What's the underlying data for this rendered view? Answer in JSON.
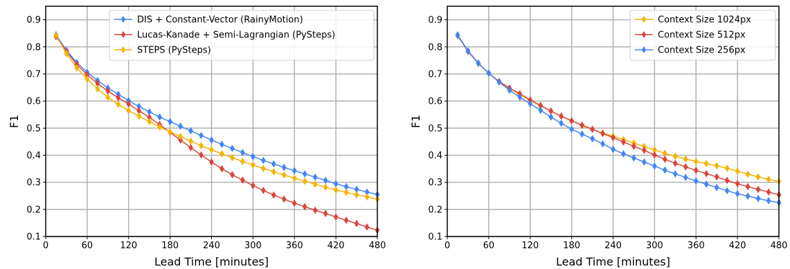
{
  "chart_data": [
    {
      "type": "line",
      "xlabel": "Lead Time [minutes]",
      "ylabel": "F1",
      "xlim": [
        0,
        480
      ],
      "ylim": [
        0.1,
        0.95
      ],
      "xticks": [
        0,
        60,
        120,
        180,
        240,
        300,
        360,
        420,
        480
      ],
      "yticks": [
        0.1,
        0.2,
        0.3,
        0.4,
        0.5,
        0.6,
        0.7,
        0.8,
        0.9
      ],
      "grid": true,
      "legend_position": "top-right",
      "x": [
        15,
        30,
        45,
        60,
        75,
        90,
        105,
        120,
        135,
        150,
        165,
        180,
        195,
        210,
        225,
        240,
        255,
        270,
        285,
        300,
        315,
        330,
        345,
        360,
        375,
        390,
        405,
        420,
        435,
        450,
        465,
        480
      ],
      "series": [
        {
          "name": "DIS + Constant-Vector (RainyMotion)",
          "color": "#4285f4",
          "values": [
            0.845,
            0.787,
            0.742,
            0.706,
            0.676,
            0.648,
            0.625,
            0.601,
            0.58,
            0.56,
            0.541,
            0.524,
            0.507,
            0.49,
            0.473,
            0.456,
            0.44,
            0.425,
            0.41,
            0.395,
            0.381,
            0.368,
            0.355,
            0.343,
            0.331,
            0.319,
            0.307,
            0.295,
            0.284,
            0.274,
            0.264,
            0.255
          ]
        },
        {
          "name": "Lucas-Kanade + Semi-Lagrangian (PySteps)",
          "color": "#d9453c",
          "values": [
            0.838,
            0.783,
            0.735,
            0.697,
            0.665,
            0.637,
            0.612,
            0.589,
            0.564,
            0.54,
            0.513,
            0.484,
            0.456,
            0.428,
            0.401,
            0.375,
            0.35,
            0.328,
            0.308,
            0.288,
            0.27,
            0.253,
            0.238,
            0.223,
            0.21,
            0.197,
            0.185,
            0.172,
            0.16,
            0.148,
            0.135,
            0.123
          ]
        },
        {
          "name": "STEPS (PySteps)",
          "color": "#f4b400",
          "values": [
            0.843,
            0.775,
            0.722,
            0.681,
            0.645,
            0.614,
            0.588,
            0.565,
            0.544,
            0.524,
            0.504,
            0.486,
            0.469,
            0.452,
            0.435,
            0.42,
            0.405,
            0.391,
            0.377,
            0.364,
            0.351,
            0.339,
            0.327,
            0.315,
            0.304,
            0.293,
            0.282,
            0.272,
            0.263,
            0.254,
            0.246,
            0.238
          ]
        }
      ]
    },
    {
      "type": "line",
      "xlabel": "Lead Time [minutes]",
      "ylabel": "F1",
      "xlim": [
        0,
        480
      ],
      "ylim": [
        0.1,
        0.95
      ],
      "xticks": [
        0,
        60,
        120,
        180,
        240,
        300,
        360,
        420,
        480
      ],
      "yticks": [
        0.1,
        0.2,
        0.3,
        0.4,
        0.5,
        0.6,
        0.7,
        0.8,
        0.9
      ],
      "grid": true,
      "legend_position": "top-right",
      "x": [
        15,
        30,
        45,
        60,
        75,
        90,
        105,
        120,
        135,
        150,
        165,
        180,
        195,
        210,
        225,
        240,
        255,
        270,
        285,
        300,
        315,
        330,
        345,
        360,
        375,
        390,
        405,
        420,
        435,
        450,
        465,
        480
      ],
      "series": [
        {
          "name": "Context Size 1024px",
          "color": "#f4b400",
          "values": [
            0.844,
            0.785,
            0.74,
            0.703,
            0.672,
            0.647,
            0.624,
            0.602,
            0.582,
            0.563,
            0.544,
            0.527,
            0.51,
            0.495,
            0.482,
            0.47,
            0.458,
            0.445,
            0.432,
            0.42,
            0.407,
            0.396,
            0.386,
            0.377,
            0.369,
            0.361,
            0.352,
            0.341,
            0.33,
            0.32,
            0.311,
            0.303
          ]
        },
        {
          "name": "Context Size 512px",
          "color": "#d9453c",
          "values": [
            0.842,
            0.783,
            0.739,
            0.703,
            0.672,
            0.648,
            0.627,
            0.604,
            0.584,
            0.563,
            0.544,
            0.527,
            0.511,
            0.496,
            0.48,
            0.465,
            0.449,
            0.433,
            0.418,
            0.401,
            0.385,
            0.37,
            0.357,
            0.344,
            0.332,
            0.32,
            0.307,
            0.295,
            0.284,
            0.274,
            0.264,
            0.254
          ]
        },
        {
          "name": "Context Size 256px",
          "color": "#4285f4",
          "values": [
            0.844,
            0.785,
            0.74,
            0.703,
            0.67,
            0.64,
            0.614,
            0.59,
            0.566,
            0.541,
            0.518,
            0.496,
            0.478,
            0.461,
            0.442,
            0.422,
            0.405,
            0.39,
            0.375,
            0.36,
            0.345,
            0.331,
            0.318,
            0.305,
            0.293,
            0.281,
            0.269,
            0.258,
            0.249,
            0.24,
            0.232,
            0.225
          ]
        }
      ]
    }
  ]
}
